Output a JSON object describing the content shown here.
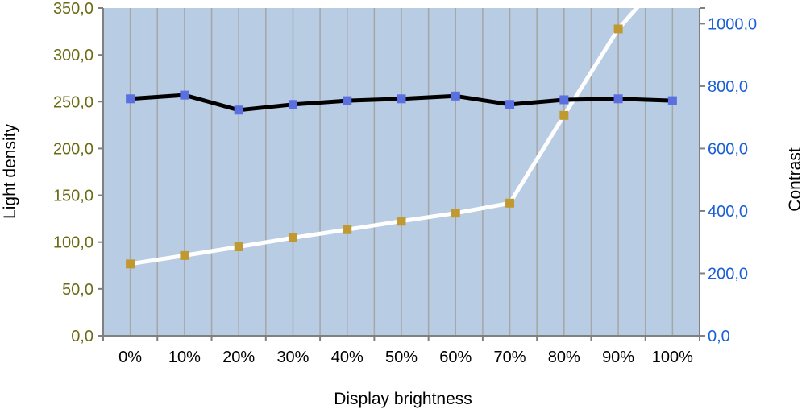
{
  "chart_data": {
    "type": "line",
    "xlabel": "Display brightness",
    "ylabel_left": "Light density",
    "ylabel_right": "Contrast",
    "categories": [
      "0%",
      "10%",
      "20%",
      "30%",
      "40%",
      "50%",
      "60%",
      "70%",
      "80%",
      "90%",
      "100%"
    ],
    "ylim_left": [
      0,
      350
    ],
    "ylim_right": [
      0,
      1050
    ],
    "left_ticks": [
      "0,0",
      "50,0",
      "100,0",
      "150,0",
      "200,0",
      "250,0",
      "300,0",
      "350,0"
    ],
    "right_ticks": [
      "0,0",
      "200,0",
      "400,0",
      "600,0",
      "800,0",
      "1000,0"
    ],
    "grid": "vertical",
    "series": [
      {
        "axis": "left",
        "values": [
          253,
          257,
          241,
          247,
          251,
          253,
          256,
          247,
          252,
          253,
          251
        ],
        "line_color": "#000000",
        "marker_color": "#5a6fe0"
      },
      {
        "axis": "right",
        "values": [
          230,
          257,
          285,
          314,
          340,
          367,
          393,
          425,
          706,
          983,
          1180
        ],
        "line_color": "#ffffff",
        "marker_color": "#c09a30",
        "marker_count": 10
      }
    ],
    "colors": {
      "plot_bg": "#b8cce4",
      "grid": "#a6a6a6",
      "left_axis_text": "#6b6b14",
      "right_axis_text": "#1a5fd6"
    }
  }
}
